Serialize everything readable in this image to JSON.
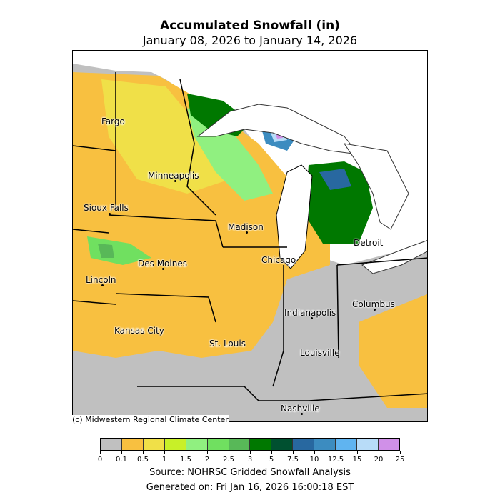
{
  "title": "Accumulated Snowfall (in)",
  "subtitle": "January 08, 2026 to January 14, 2026",
  "credit": "(c) Midwestern Regional Climate Center",
  "source": "Source: NOHRSC Gridded Snowfall Analysis",
  "generated": "Generated on: Fri Jan 16, 2026 16:00:18 EST",
  "colorbar": {
    "ticks": [
      "0",
      "0.1",
      "0.5",
      "1",
      "1.5",
      "2",
      "2.5",
      "3",
      "5",
      "7.5",
      "10",
      "12.5",
      "15",
      "20",
      "25"
    ],
    "colors": [
      "#c0c0c0",
      "#f8c040",
      "#f0e048",
      "#c8f028",
      "#90f080",
      "#70e060",
      "#58b858",
      "#007800",
      "#005030",
      "#2868a0",
      "#3c8cc0",
      "#60b4f0",
      "#b8dcf8",
      "#d090e8"
    ]
  },
  "cities": [
    {
      "name": "Fargo"
    },
    {
      "name": "Minneapolis"
    },
    {
      "name": "Sioux Falls"
    },
    {
      "name": "Madison"
    },
    {
      "name": "Detroit"
    },
    {
      "name": "Des Moines"
    },
    {
      "name": "Chicago"
    },
    {
      "name": "Lincoln"
    },
    {
      "name": "Indianapolis"
    },
    {
      "name": "Columbus"
    },
    {
      "name": "Kansas City"
    },
    {
      "name": "St. Louis"
    },
    {
      "name": "Louisville"
    },
    {
      "name": "Nashville"
    }
  ]
}
